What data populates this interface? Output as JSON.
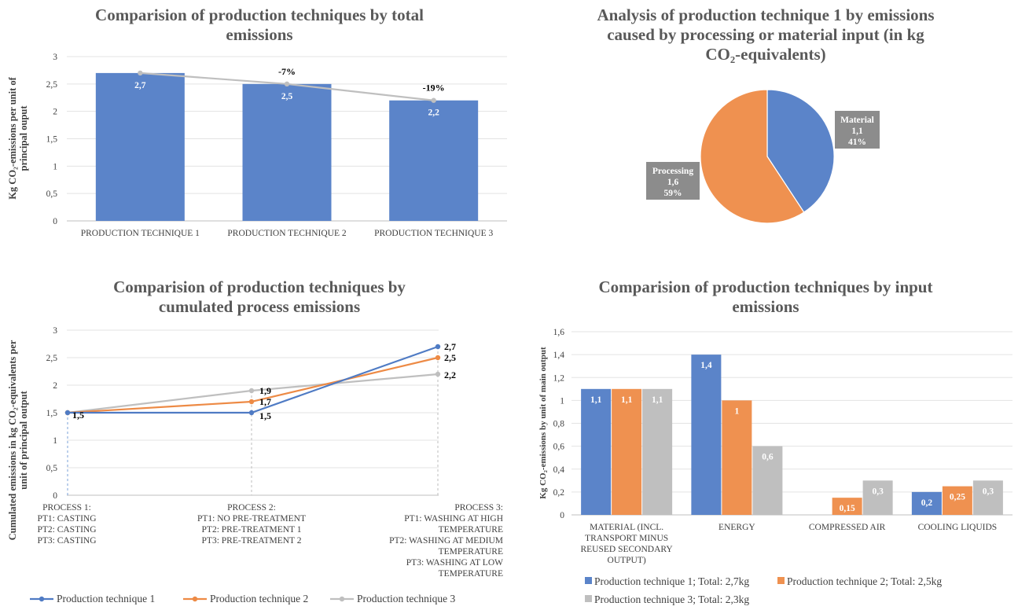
{
  "chart_data": [
    {
      "id": "c1",
      "type": "bar",
      "title": "Comparision  of  production  techniques  by  total  emissions",
      "title_lines": [
        "Comparision  of  production  techniques  by  total",
        "emissions"
      ],
      "ylabel_lines": [
        "Kg CO₂-emissions per unit of",
        "principal ouput"
      ],
      "categories": [
        "PRODUCTION  TECHNIQUE 1",
        "PRODUCTION  TECHNIQUE 2",
        "PRODUCTION  TECHNIQUE 3"
      ],
      "values": [
        2.7,
        2.5,
        2.2
      ],
      "value_labels": [
        "2,7",
        "2,5",
        "2,2"
      ],
      "change_labels": [
        "",
        "-7%",
        "-19%"
      ],
      "ylim": [
        0,
        3
      ],
      "yticks": [
        0,
        0.5,
        1,
        1.5,
        2,
        2.5,
        3
      ],
      "ytick_labels": [
        "0",
        "0,5",
        "1",
        "1,5",
        "2",
        "2,5",
        "3"
      ],
      "colors": {
        "bar": "#5b84c9",
        "trend": "#bfbfbf"
      }
    },
    {
      "id": "c2",
      "type": "pie",
      "title": "Analysis of production technique 1 by emissions caused by processing or material input (in kg CO₂-equivalents)",
      "title_lines": [
        "Analysis of production technique 1 by emissions",
        "caused by processing or material input (in kg",
        "CO₂-equivalents)"
      ],
      "slices": [
        {
          "name": "Material",
          "value": 1.1,
          "value_label": "1,1",
          "percent": "41%",
          "color": "#5b84c9"
        },
        {
          "name": "Processing",
          "value": 1.6,
          "value_label": "1,6",
          "percent": "59%",
          "color": "#ef9150"
        }
      ],
      "label_box_color": "#8c8c8c"
    },
    {
      "id": "c3",
      "type": "line",
      "title": "Comparision  of  production  techniques  by  cumulated  process  emissions",
      "title_lines": [
        "Comparision  of  production  techniques  by",
        "cumulated  process  emissions"
      ],
      "ylabel_lines": [
        "Cumulated emissions in kg CO₂-equivalents per",
        "unit of principal output"
      ],
      "categories": [
        [
          "PROCESS 1:",
          "PT1: CASTING",
          "PT2: CASTING",
          "PT3: CASTING"
        ],
        [
          "PROCESS 2:",
          "PT1: NO PRE-TREATMENT",
          "PT2: PRE-TREATMENT  1",
          "PT3: PRE-TREATMENT  2"
        ],
        [
          "PROCESS 3:",
          "PT1: WASHING AT HIGH",
          "TEMPERATURE",
          "PT2: WASHING AT MEDIUM",
          "TEMPERATURE",
          "PT3: WASHING AT LOW",
          "TEMPERATURE"
        ]
      ],
      "series": [
        {
          "name": "Production technique 1",
          "values": [
            1.5,
            1.5,
            2.7
          ],
          "labels": [
            "1,5",
            "1,5",
            "2,7"
          ],
          "color": "#4f7bc4"
        },
        {
          "name": "Production technique 2",
          "values": [
            1.5,
            1.7,
            2.5
          ],
          "labels": [
            "",
            "1,7",
            "2,5"
          ],
          "color": "#ed8a45"
        },
        {
          "name": "Production technique 3",
          "values": [
            1.5,
            1.9,
            2.2
          ],
          "labels": [
            "",
            "1,9",
            "2,2"
          ],
          "color": "#bfbfbf"
        }
      ],
      "ylim": [
        0,
        3
      ],
      "yticks": [
        0,
        0.5,
        1,
        1.5,
        2,
        2.5,
        3
      ],
      "ytick_labels": [
        "0",
        "0,5",
        "1",
        "1,5",
        "2",
        "2,5",
        "3"
      ],
      "legend": "bottom"
    },
    {
      "id": "c4",
      "type": "bar",
      "title": "Comparision  of  production  techniques  by  input  emissions",
      "title_lines": [
        "Comparision  of  production  techniques  by  input",
        "emissions"
      ],
      "ylabel_lines": [
        "Kg CO₂-emissions by unit of main output"
      ],
      "categories": [
        [
          "MATERIAL  (INCL.",
          "TRANSPORT  MINUS",
          "REUSED SECONDARY",
          "OUTPUT)"
        ],
        [
          "ENERGY"
        ],
        [
          "COMPRESSED AIR"
        ],
        [
          "COOLING LIQUIDS"
        ]
      ],
      "series": [
        {
          "name": "Production technique 1; Total: 2,7kg",
          "values": [
            1.1,
            1.4,
            0,
            0.2
          ],
          "labels": [
            "1,1",
            "1,4",
            "",
            "0,2"
          ],
          "color": "#5b84c9"
        },
        {
          "name": "Production technique 2; Total: 2,5kg",
          "values": [
            1.1,
            1.0,
            0.15,
            0.25
          ],
          "labels": [
            "1,1",
            "1",
            "0,15",
            "0,25"
          ],
          "color": "#ef9150"
        },
        {
          "name": "Production technique 3; Total: 2,3kg",
          "values": [
            1.1,
            0.6,
            0.3,
            0.3
          ],
          "labels": [
            "1,1",
            "0,6",
            "0,3",
            "0,3"
          ],
          "color": "#bfbfbf"
        }
      ],
      "ylim": [
        0,
        1.6
      ],
      "yticks": [
        0,
        0.2,
        0.4,
        0.6,
        0.8,
        1,
        1.2,
        1.4,
        1.6
      ],
      "ytick_labels": [
        "0",
        "0,2",
        "0,4",
        "0,6",
        "0,8",
        "1",
        "1,2",
        "1,4",
        "1,6"
      ],
      "legend": "bottom"
    }
  ]
}
